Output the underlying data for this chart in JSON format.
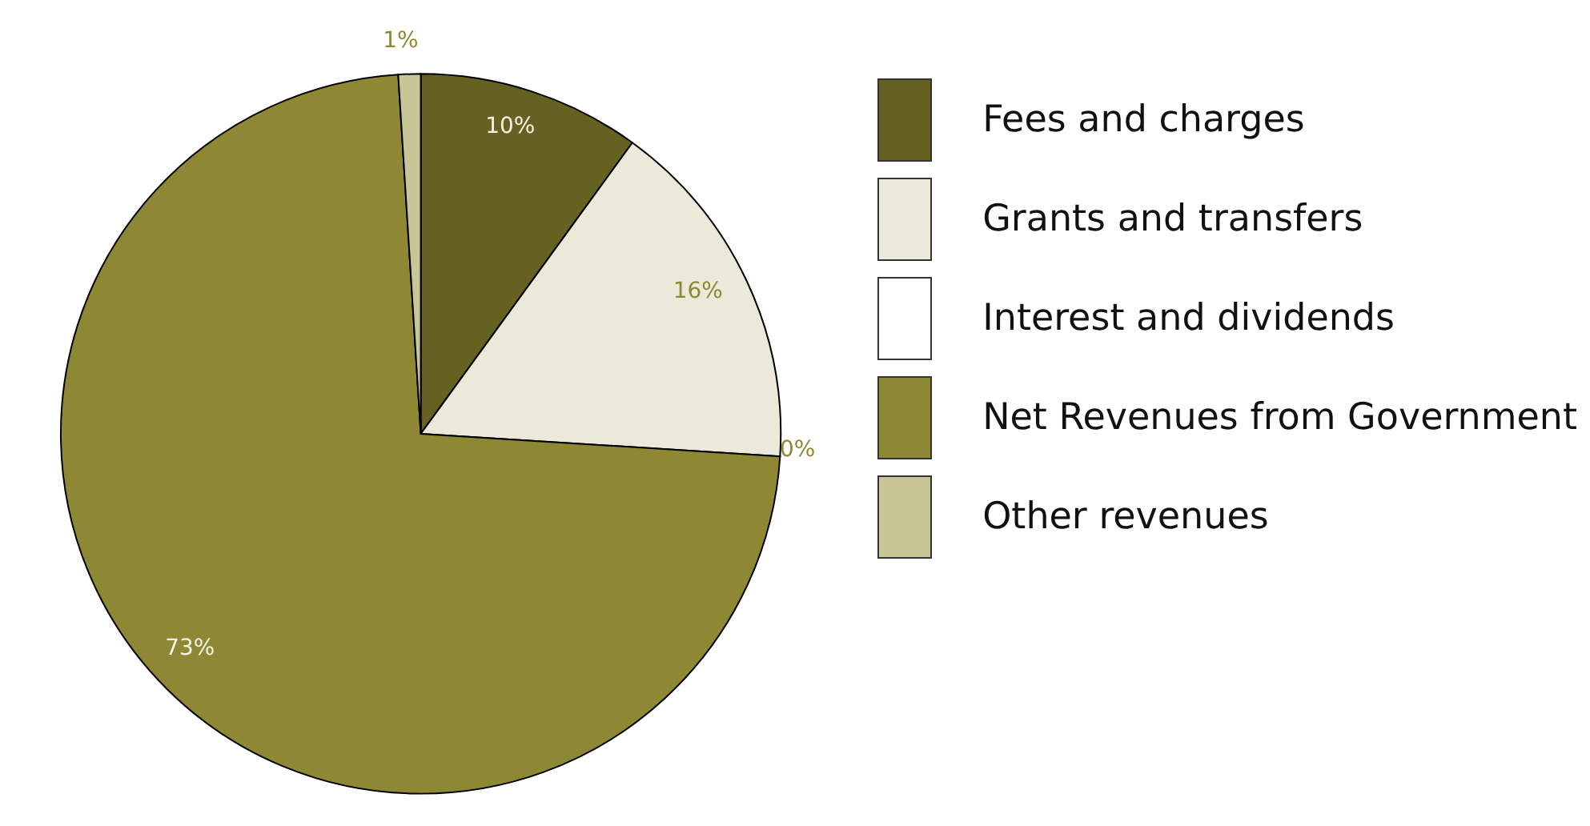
{
  "chart_data": {
    "type": "pie",
    "categories": [
      "Fees and charges",
      "Grants and transfers",
      "Interest and dividends",
      "Net Revenues from Government",
      "Other revenues"
    ],
    "values": [
      10,
      16,
      0,
      73,
      1
    ],
    "value_labels": [
      "10%",
      "16%",
      "0%",
      "73%",
      "1%"
    ],
    "colors": [
      "#676121",
      "#ebe9da",
      "#ffffff",
      "#8e8835",
      "#c8c597"
    ],
    "legend": "right"
  }
}
